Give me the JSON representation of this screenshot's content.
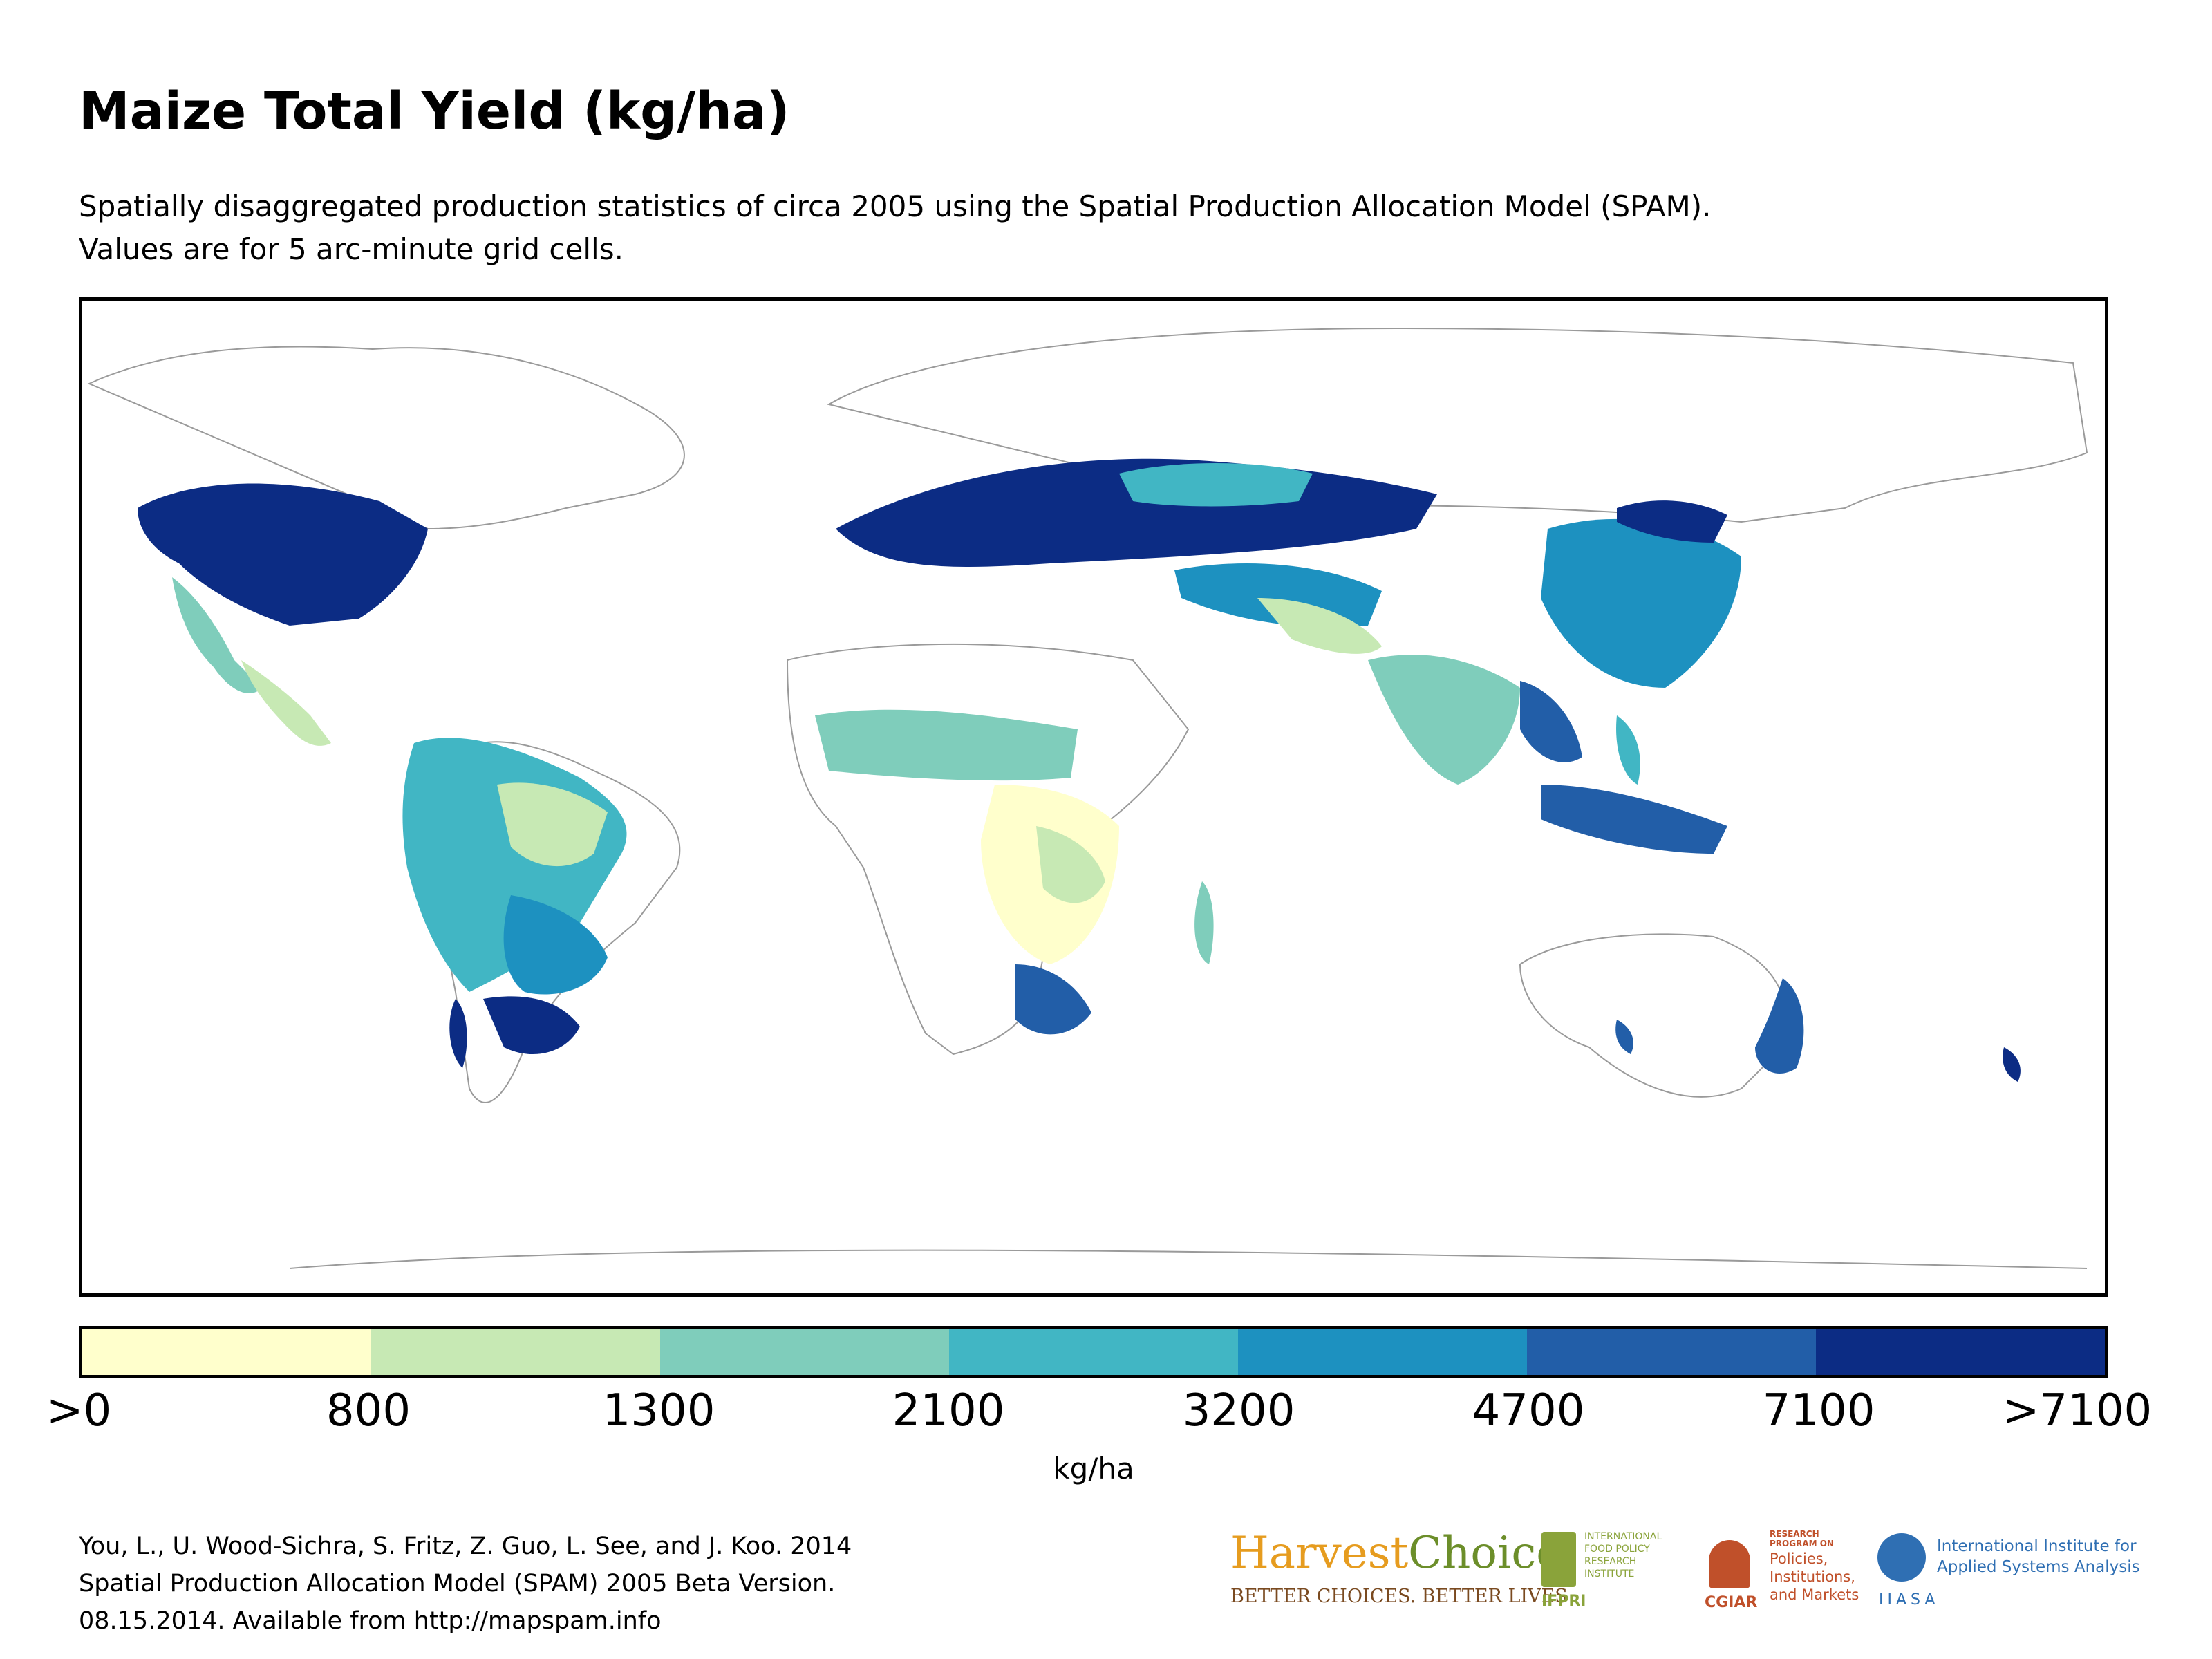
{
  "title": "Maize Total Yield (kg/ha)",
  "subtitle": [
    "Spatially disaggregated production statistics of circa 2005 using the Spatial Production Allocation Model (SPAM).",
    "Values are for 5 arc-minute grid cells."
  ],
  "legend": {
    "unit_label": "kg/ha",
    "tick_labels": [
      ">0",
      "800",
      "1300",
      "2100",
      "3200",
      "4700",
      "7100",
      ">7100"
    ],
    "colors": [
      "#ffffcc",
      "#c7e9b4",
      "#7fcdbb",
      "#41b6c4",
      "#1d91c0",
      "#225ea8",
      "#0c2c84"
    ]
  },
  "citation": [
    "You, L., U. Wood-Sichra, S. Fritz, Z. Guo, L. See, and J. Koo. 2014",
    "Spatial Production Allocation Model (SPAM) 2005 Beta Version.",
    "08.15.2014. Available from http://mapspam.info"
  ],
  "logos": {
    "harvestchoice": {
      "name_part1": "Harvest",
      "name_part2": "Choice",
      "tagline": "BETTER CHOICES. BETTER LIVES"
    },
    "ifpri": {
      "abbr": "IFPRI",
      "full": [
        "INTERNATIONAL",
        "FOOD POLICY",
        "RESEARCH",
        "INSTITUTE"
      ]
    },
    "cgiar": {
      "abbr": "CGIAR",
      "head": [
        "RESEARCH",
        "PROGRAM ON"
      ],
      "body": [
        "Policies,",
        "Institutions,",
        "and Markets"
      ]
    },
    "iiasa": {
      "abbr": "IIASA",
      "full": [
        "International Institute for",
        "Applied Systems Analysis"
      ]
    }
  }
}
